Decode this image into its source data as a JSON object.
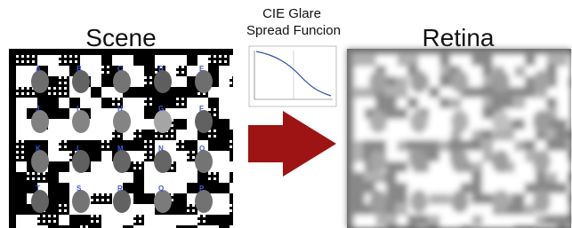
{
  "scene": {
    "title": "Scene",
    "labels": [
      [
        "A",
        "B",
        "C",
        "D",
        "E"
      ],
      [
        "J",
        "I",
        "H",
        "G",
        "F"
      ],
      [
        "K",
        "L",
        "M",
        "N",
        "O"
      ],
      [
        "T",
        "S",
        "R",
        "Q",
        "P"
      ]
    ]
  },
  "glare": {
    "title_lines": [
      "CIE Glare",
      "Spread Funcion"
    ]
  },
  "retina": {
    "title": "Retina"
  }
}
